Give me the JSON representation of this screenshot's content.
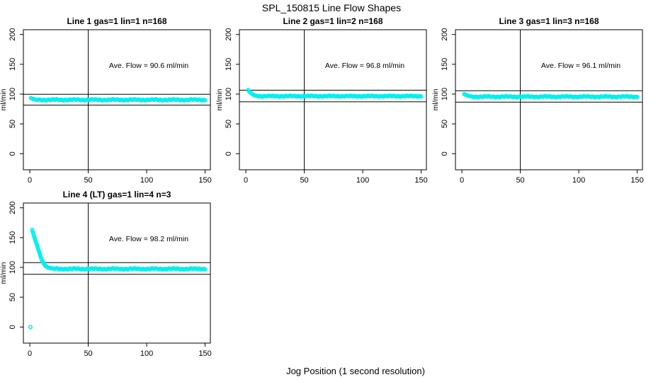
{
  "figure": {
    "title": "SPL_150815  Line Flow Shapes",
    "x_axis_label": "Jog Position (1 second resolution)",
    "background_color": "#ffffff",
    "axis_color": "#000000",
    "point_color": "#00EFEF"
  },
  "chart_data": [
    {
      "id": "panel-line-1",
      "type": "scatter",
      "title": "Line 1 gas=1 lin=1 n=168",
      "annotation": "Ave. Flow =  90.6  ml/min",
      "avg_flow": 90.6,
      "n": 168,
      "y_label": "ml/min",
      "x_ticks": [
        0,
        50,
        100,
        150
      ],
      "y_ticks": [
        0,
        50,
        100,
        150,
        200
      ],
      "xlim": [
        -5.5,
        154.5
      ],
      "ylim": [
        -27,
        208
      ],
      "vline_x": 50,
      "hlines": [
        99.7,
        81.5
      ],
      "grid_pos": {
        "row": 0,
        "col": 0
      },
      "series": {
        "transient": [
          [
            1,
            93.5
          ],
          [
            2,
            92.5
          ],
          [
            3,
            91.8
          ],
          [
            4,
            91.2
          ],
          [
            5,
            90.8
          ]
        ],
        "steady": {
          "x_from": 6,
          "x_to": 150,
          "step": 1,
          "y": 90.4,
          "spread": 1.2
        },
        "outliers": []
      }
    },
    {
      "id": "panel-line-2",
      "type": "scatter",
      "title": "Line 2 gas=1 lin=2 n=168",
      "annotation": "Ave. Flow =  96.8  ml/min",
      "avg_flow": 96.8,
      "n": 168,
      "y_label": "ml/min",
      "x_ticks": [
        0,
        50,
        100,
        150
      ],
      "y_ticks": [
        0,
        50,
        100,
        150,
        200
      ],
      "xlim": [
        -5.5,
        154.5
      ],
      "ylim": [
        -27,
        208
      ],
      "vline_x": 50,
      "hlines": [
        106.5,
        87.1
      ],
      "grid_pos": {
        "row": 0,
        "col": 1
      },
      "series": {
        "transient": [
          [
            2,
            107
          ],
          [
            3,
            104.5
          ],
          [
            4,
            102.5
          ],
          [
            5,
            100.8
          ],
          [
            6,
            99.4
          ],
          [
            7,
            98.4
          ],
          [
            8,
            97.7
          ],
          [
            9,
            97.2
          ],
          [
            10,
            96.9
          ]
        ],
        "steady": {
          "x_from": 11,
          "x_to": 150,
          "step": 1,
          "y": 96.5,
          "spread": 1.0
        },
        "outliers": []
      }
    },
    {
      "id": "panel-line-3",
      "type": "scatter",
      "title": "Line 3 gas=1 lin=3 n=168",
      "annotation": "Ave. Flow =  96.1  ml/min",
      "avg_flow": 96.1,
      "n": 168,
      "y_label": "ml/min",
      "x_ticks": [
        0,
        50,
        100,
        150
      ],
      "y_ticks": [
        0,
        50,
        100,
        150,
        200
      ],
      "xlim": [
        -5.5,
        154.5
      ],
      "ylim": [
        -27,
        208
      ],
      "vline_x": 50,
      "hlines": [
        105.7,
        86.5
      ],
      "grid_pos": {
        "row": 0,
        "col": 2
      },
      "series": {
        "transient": [
          [
            2,
            100
          ],
          [
            3,
            99
          ],
          [
            4,
            98.2
          ],
          [
            5,
            97.4
          ],
          [
            6,
            96.8
          ],
          [
            7,
            96.3
          ]
        ],
        "steady": {
          "x_from": 8,
          "x_to": 150,
          "step": 1,
          "y": 95.7,
          "spread": 1.0
        },
        "outliers": []
      }
    },
    {
      "id": "panel-line-4",
      "type": "scatter",
      "title": "Line 4 (LT) gas=1 lin=4 n=3",
      "annotation": "Ave. Flow =  98.2  ml/min",
      "avg_flow": 98.2,
      "n": 3,
      "y_label": "ml/min",
      "x_ticks": [
        0,
        50,
        100,
        150
      ],
      "y_ticks": [
        0,
        50,
        100,
        150,
        200
      ],
      "xlim": [
        -5.5,
        154.5
      ],
      "ylim": [
        -27,
        208
      ],
      "vline_x": 50,
      "hlines": [
        108.0,
        88.4
      ],
      "grid_pos": {
        "row": 1,
        "col": 0
      },
      "series": {
        "transient": [
          [
            2,
            163
          ],
          [
            2.5,
            160
          ],
          [
            3,
            157
          ],
          [
            3.5,
            153
          ],
          [
            4,
            150
          ],
          [
            4.5,
            147
          ],
          [
            5,
            144
          ],
          [
            5.5,
            141
          ],
          [
            6,
            138
          ],
          [
            6.5,
            135
          ],
          [
            7,
            132
          ],
          [
            7.5,
            129
          ],
          [
            8,
            126
          ],
          [
            8.5,
            123
          ],
          [
            9,
            120
          ],
          [
            9.5,
            117
          ],
          [
            10,
            114
          ],
          [
            10.5,
            112
          ],
          [
            11,
            110
          ],
          [
            11.5,
            108
          ],
          [
            12,
            106.5
          ],
          [
            12.5,
            105
          ],
          [
            13,
            103.5
          ],
          [
            13.5,
            102.5
          ],
          [
            14,
            101.5
          ],
          [
            15,
            100.5
          ],
          [
            16,
            99.8
          ],
          [
            17,
            99.2
          ],
          [
            18,
            98.7
          ],
          [
            19,
            98.3
          ],
          [
            20,
            98
          ]
        ],
        "steady": {
          "x_from": 21,
          "x_to": 150,
          "step": 1,
          "y": 97.6,
          "spread": 1.1
        },
        "outliers": [
          [
            0.5,
            0
          ]
        ]
      }
    }
  ]
}
